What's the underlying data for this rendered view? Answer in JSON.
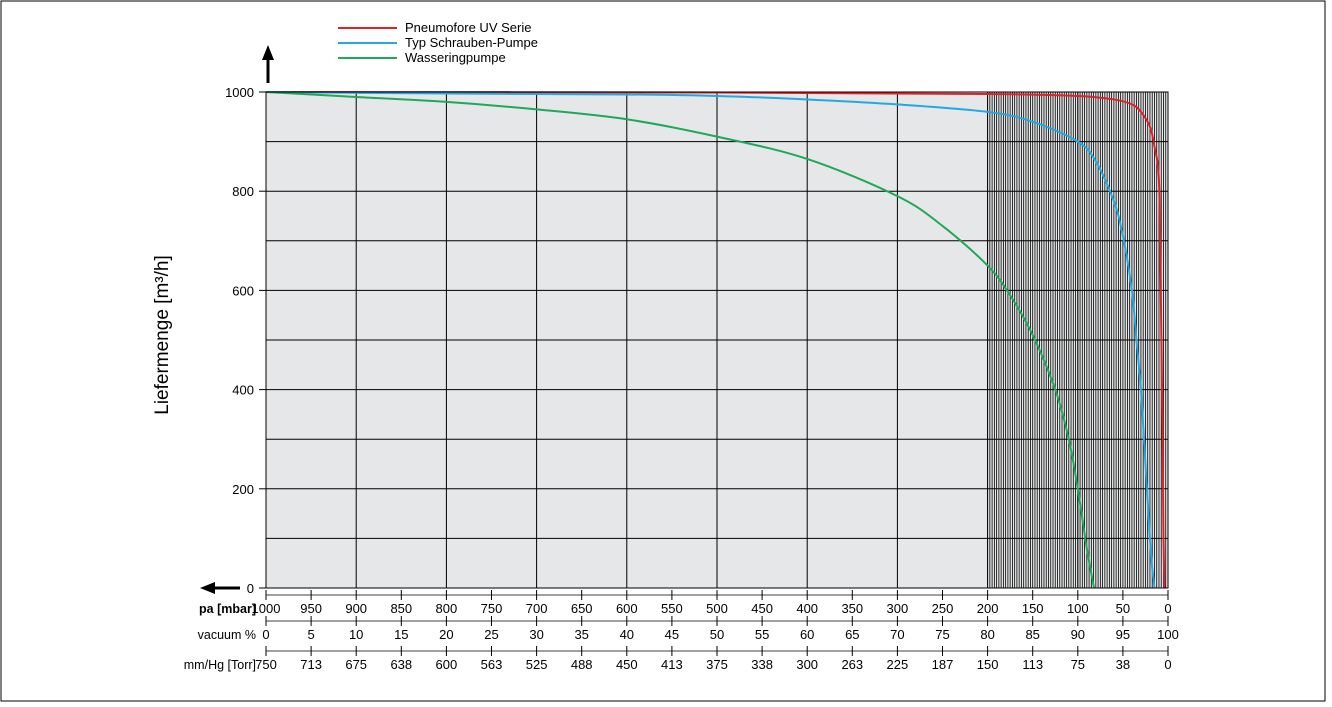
{
  "chart_data": {
    "type": "line",
    "ylabel": "Liefermenge [m³/h]",
    "ylim": [
      0,
      1000
    ],
    "yticks": [
      0,
      200,
      400,
      600,
      800,
      1000
    ],
    "xlim": [
      1000,
      0
    ],
    "x_axes": [
      {
        "label": "pa [mbar]",
        "ticks": [
          "1000",
          "950",
          "900",
          "850",
          "800",
          "750",
          "700",
          "650",
          "600",
          "550",
          "500",
          "450",
          "400",
          "350",
          "300",
          "250",
          "200",
          "150",
          "100",
          "50",
          "0"
        ]
      },
      {
        "label": "vacuum %",
        "ticks": [
          "0",
          "5",
          "10",
          "15",
          "20",
          "25",
          "30",
          "35",
          "40",
          "45",
          "50",
          "55",
          "60",
          "65",
          "70",
          "75",
          "80",
          "85",
          "90",
          "95",
          "100"
        ]
      },
      {
        "label": "mm/Hg [Torr]",
        "ticks": [
          "750",
          "713",
          "675",
          "638",
          "600",
          "563",
          "525",
          "488",
          "450",
          "413",
          "375",
          "338",
          "300",
          "263",
          "225",
          "187",
          "150",
          "113",
          "75",
          "38",
          "0"
        ]
      }
    ],
    "grid": true,
    "legend_position": "top-left",
    "series": [
      {
        "name": "Pneumofore UV Serie",
        "color": "#e0202a",
        "x": [
          1000,
          500,
          200,
          100,
          60,
          40,
          30,
          20,
          15,
          10,
          8,
          6,
          5,
          4
        ],
        "y": [
          1000,
          999,
          996,
          992,
          985,
          975,
          960,
          930,
          890,
          820,
          600,
          300,
          100,
          0
        ]
      },
      {
        "name": "Typ Schrauben-Pumpe",
        "color": "#21a9e1",
        "x": [
          1000,
          800,
          600,
          500,
          400,
          300,
          200,
          150,
          100,
          80,
          60,
          50,
          40,
          35,
          30,
          25,
          20,
          18,
          15
        ],
        "y": [
          1000,
          997,
          995,
          992,
          985,
          975,
          960,
          940,
          900,
          860,
          780,
          710,
          600,
          500,
          400,
          250,
          100,
          50,
          0
        ]
      },
      {
        "name": "Wasseringpumpe",
        "color": "#1fa85a",
        "x": [
          1000,
          900,
          800,
          700,
          600,
          500,
          400,
          300,
          250,
          200,
          175,
          150,
          125,
          110,
          100,
          90,
          82
        ],
        "y": [
          1000,
          990,
          980,
          965,
          945,
          910,
          865,
          790,
          730,
          650,
          590,
          510,
          400,
          300,
          200,
          80,
          0
        ]
      }
    ]
  }
}
